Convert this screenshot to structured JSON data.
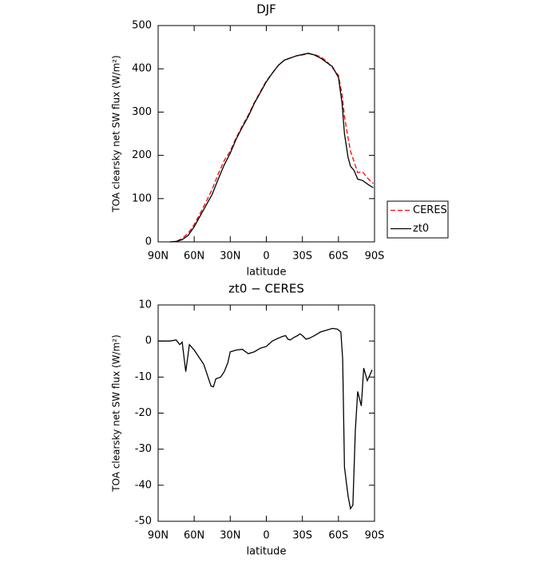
{
  "chart_data": [
    {
      "type": "line",
      "title": "DJF",
      "xlabel": "latitude",
      "ylabel": "TOA clearsky net SW flux (W/m²)",
      "x": [
        80,
        75,
        70,
        65,
        60,
        55,
        50,
        45,
        40,
        35,
        30,
        25,
        20,
        15,
        10,
        5,
        0,
        -5,
        -10,
        -15,
        -20,
        -25,
        -30,
        -35,
        -40,
        -45,
        -50,
        -55,
        -60,
        -63,
        -65,
        -68,
        -70,
        -73,
        -76,
        -80,
        -85,
        -89
      ],
      "series": [
        {
          "name": "CERES",
          "color": "#ff0000",
          "style": "dashed",
          "values": [
            0,
            1,
            8,
            20,
            40,
            66,
            93,
            122,
            157,
            188,
            210,
            241,
            268,
            293,
            322,
            347,
            372,
            390,
            408,
            420,
            425,
            430,
            432,
            435,
            433,
            428,
            418,
            402,
            385,
            340,
            290,
            240,
            210,
            185,
            160,
            162,
            145,
            135
          ]
        },
        {
          "name": "zt0",
          "color": "#000000",
          "style": "solid",
          "values": [
            0,
            1,
            5,
            15,
            35,
            60,
            85,
            110,
            145,
            178,
            205,
            238,
            265,
            290,
            320,
            345,
            370,
            390,
            408,
            420,
            425,
            430,
            433,
            436,
            432,
            425,
            415,
            405,
            380,
            320,
            250,
            195,
            175,
            165,
            145,
            142,
            132,
            125
          ]
        }
      ],
      "xlim": [
        90,
        -90
      ],
      "xticks": [
        {
          "value": 90,
          "label": "90N"
        },
        {
          "value": 60,
          "label": "60N"
        },
        {
          "value": 30,
          "label": "30N"
        },
        0,
        {
          "value": -30,
          "label": "30S"
        },
        {
          "value": -60,
          "label": "60S"
        },
        {
          "value": -90,
          "label": "90S"
        }
      ],
      "ylim": [
        0,
        500
      ],
      "yticks": [
        0,
        100,
        200,
        300,
        400,
        500
      ],
      "legend": true
    },
    {
      "type": "line",
      "title": "zt0 − CERES",
      "xlabel": "latitude",
      "ylabel": "TOA clearsky net SW flux (W/m²)",
      "x": [
        90,
        85,
        80,
        75,
        72,
        70,
        67,
        64,
        60,
        56,
        52,
        48,
        46,
        44,
        42,
        38,
        35,
        32,
        30,
        25,
        20,
        15,
        10,
        5,
        0,
        -5,
        -10,
        -13,
        -16,
        -18,
        -20,
        -23,
        -26,
        -28,
        -30,
        -33,
        -36,
        -40,
        -45,
        -50,
        -55,
        -59,
        -62,
        -63.5,
        -65,
        -68,
        -70,
        -72,
        -74,
        -76,
        -79,
        -81,
        -84,
        -88
      ],
      "series": [
        {
          "color": "#000000",
          "style": "solid",
          "values": [
            0,
            0,
            0,
            0.3,
            -1,
            -0.3,
            -8.5,
            -1,
            -2.5,
            -4.5,
            -6.5,
            -10.5,
            -12.5,
            -12.7,
            -10.5,
            -10,
            -8.5,
            -6,
            -3,
            -2.5,
            -2.3,
            -3.5,
            -3,
            -2,
            -1.5,
            0,
            0.8,
            1.2,
            1.5,
            0.5,
            0.3,
            1,
            1.5,
            2,
            1.5,
            0.5,
            0.8,
            1.5,
            2.5,
            3,
            3.5,
            3.3,
            2.5,
            -5,
            -35,
            -43,
            -46.5,
            -45.5,
            -25,
            -14,
            -18,
            -7.5,
            -11,
            -8
          ]
        }
      ],
      "xlim": [
        90,
        -90
      ],
      "xticks": [
        {
          "value": 90,
          "label": "90N"
        },
        {
          "value": 60,
          "label": "60N"
        },
        {
          "value": 30,
          "label": "30N"
        },
        0,
        {
          "value": -30,
          "label": "30S"
        },
        {
          "value": -60,
          "label": "60S"
        },
        {
          "value": -90,
          "label": "90S"
        }
      ],
      "ylim": [
        -50,
        10
      ],
      "yticks": [
        -50,
        -40,
        -30,
        -20,
        -10,
        0,
        10
      ],
      "legend": false
    }
  ]
}
